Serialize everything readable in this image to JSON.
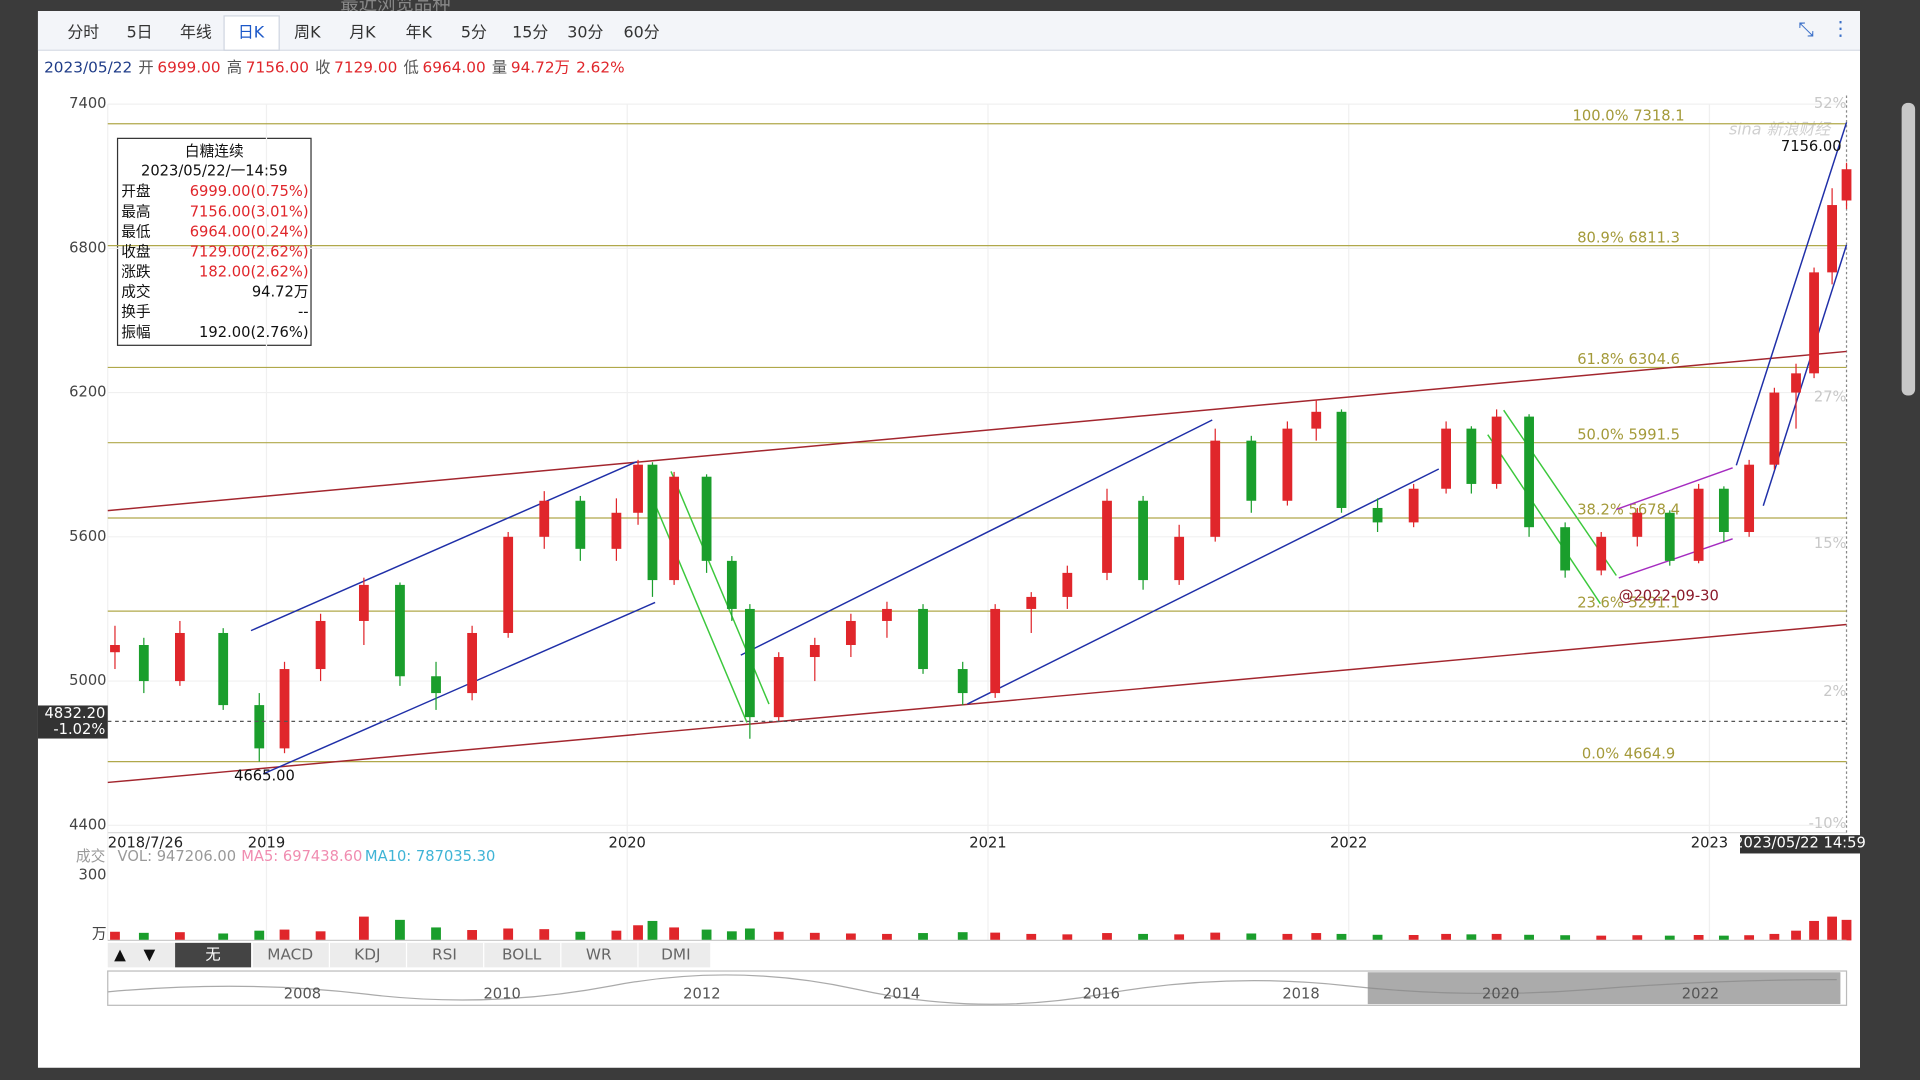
{
  "header": {
    "recent": "最近浏览品种"
  },
  "tabs": [
    "分时",
    "5日",
    "年线",
    "日K",
    "周K",
    "月K",
    "年K",
    "5分",
    "15分",
    "30分",
    "60分"
  ],
  "selected_tab": 3,
  "quote": {
    "date": "2023/05/22",
    "items": [
      [
        "开",
        "6999.00"
      ],
      [
        "高",
        "7156.00"
      ],
      [
        "收",
        "7129.00"
      ],
      [
        "低",
        "6964.00"
      ],
      [
        "量",
        "94.72万"
      ]
    ],
    "change": "2.62%"
  },
  "info_box": {
    "name": "白糖连续",
    "time": "2023/05/22/一14:59",
    "rows": [
      [
        "开盘",
        "6999.00(0.75%)"
      ],
      [
        "最高",
        "7156.00(3.01%)"
      ],
      [
        "最低",
        "6964.00(0.24%)"
      ],
      [
        "收盘",
        "7129.00(2.62%)"
      ],
      [
        "涨跌",
        "182.00(2.62%)"
      ],
      [
        "成交",
        "94.72万"
      ],
      [
        "换手",
        "--"
      ],
      [
        "振幅",
        "192.00(2.76%)"
      ]
    ]
  },
  "chart_data": {
    "type": "candlestick",
    "xlim": [
      2018.56,
      2023.38
    ],
    "xticks": [
      {
        "value": 2018.56,
        "label": "2018/7/26"
      },
      2019,
      2020,
      2021,
      2022,
      2023
    ],
    "ylim": [
      4400,
      7400
    ],
    "yticks": [
      4400,
      5000,
      5600,
      6200,
      6800,
      7400
    ],
    "right_ticks": [
      {
        "value": 7400,
        "label": "52%"
      },
      {
        "value": 6180,
        "label": "27%"
      },
      {
        "value": 5570,
        "label": "15%"
      },
      {
        "value": 4955,
        "label": "2%"
      },
      {
        "value": 4405,
        "label": "-10%"
      }
    ],
    "fib_levels": [
      {
        "value": 7318.1,
        "label": "100.0% 7318.1"
      },
      {
        "value": 6811.3,
        "label": "80.9% 6811.3"
      },
      {
        "value": 6304.6,
        "label": "61.8% 6304.6"
      },
      {
        "value": 5991.5,
        "label": "50.0% 5991.5"
      },
      {
        "value": 5678.4,
        "label": "38.2% 5678.4"
      },
      {
        "value": 5291.1,
        "label": "23.6% 5291.1"
      },
      {
        "value": 4664.9,
        "label": "0.0% 4664.9"
      }
    ],
    "crosshair": {
      "value": 4832.2,
      "label": "4832.20",
      "pct": "-1.02%",
      "time": "2023/05/22 14:59"
    },
    "annotations": {
      "low": "4665.00",
      "high": "7156.00",
      "date": "@2022-09-30"
    },
    "up_color": "#e0262b",
    "down_color": "#1a9e2c",
    "candles": {
      "x": [
        2018.58,
        2018.66,
        2018.76,
        2018.88,
        2018.98,
        2019.05,
        2019.15,
        2019.27,
        2019.37,
        2019.47,
        2019.57,
        2019.67,
        2019.77,
        2019.87,
        2019.97,
        2020.03,
        2020.07,
        2020.13,
        2020.22,
        2020.29,
        2020.34,
        2020.42,
        2020.52,
        2020.62,
        2020.72,
        2020.82,
        2020.93,
        2021.02,
        2021.12,
        2021.22,
        2021.33,
        2021.43,
        2021.53,
        2021.63,
        2021.73,
        2021.83,
        2021.91,
        2021.98,
        2022.08,
        2022.18,
        2022.27,
        2022.34,
        2022.41,
        2022.5,
        2022.6,
        2022.7,
        2022.8,
        2022.89,
        2022.97,
        2023.04,
        2023.11,
        2023.18,
        2023.24,
        2023.29,
        2023.34,
        2023.38
      ],
      "open": [
        5120,
        5150,
        5000,
        5200,
        4900,
        4720,
        5050,
        5250,
        5400,
        5020,
        4950,
        5200,
        5600,
        5750,
        5550,
        5700,
        5900,
        5420,
        5850,
        5500,
        5300,
        4850,
        5100,
        5150,
        5250,
        5300,
        5050,
        4950,
        5300,
        5350,
        5450,
        5750,
        5420,
        5600,
        6000,
        5750,
        6050,
        6120,
        5720,
        5660,
        5800,
        6050,
        5820,
        6100,
        5640,
        5460,
        5600,
        5700,
        5500,
        5800,
        5620,
        5900,
        6200,
        6280,
        6700,
        6999
      ],
      "high": [
        5230,
        5180,
        5250,
        5220,
        4950,
        5080,
        5280,
        5430,
        5410,
        5080,
        5230,
        5620,
        5790,
        5770,
        5760,
        5920,
        5910,
        5870,
        5860,
        5520,
        5320,
        5120,
        5180,
        5280,
        5330,
        5320,
        5080,
        5320,
        5370,
        5480,
        5800,
        5770,
        5650,
        6050,
        6020,
        6080,
        6170,
        6130,
        5760,
        5820,
        6080,
        6060,
        6130,
        6110,
        5660,
        5620,
        5720,
        5710,
        5820,
        5810,
        5920,
        6220,
        6320,
        6720,
        7050,
        7156
      ],
      "low": [
        5050,
        4950,
        4980,
        4880,
        4665,
        4700,
        5000,
        5150,
        4980,
        4880,
        4920,
        5180,
        5550,
        5500,
        5500,
        5650,
        5350,
        5400,
        5450,
        5250,
        4760,
        4830,
        5000,
        5100,
        5180,
        5030,
        4900,
        4930,
        5200,
        5300,
        5420,
        5380,
        5400,
        5580,
        5700,
        5730,
        6000,
        5700,
        5620,
        5640,
        5780,
        5780,
        5800,
        5600,
        5430,
        5440,
        5560,
        5480,
        5490,
        5580,
        5600,
        5880,
        6050,
        6260,
        6650,
        6964
      ],
      "close": [
        5150,
        5000,
        5200,
        4900,
        4720,
        5050,
        5250,
        5400,
        5020,
        4950,
        5200,
        5600,
        5750,
        5550,
        5700,
        5900,
        5420,
        5850,
        5500,
        5300,
        4850,
        5100,
        5150,
        5250,
        5300,
        5050,
        4950,
        5300,
        5350,
        5450,
        5750,
        5420,
        5600,
        6000,
        5750,
        6050,
        6120,
        5720,
        5660,
        5800,
        6050,
        5820,
        6100,
        5640,
        5460,
        5600,
        5700,
        5500,
        5800,
        5620,
        5900,
        6200,
        6280,
        6700,
        6980,
        7129
      ],
      "volume": [
        40,
        35,
        38,
        32,
        45,
        50,
        42,
        110,
        95,
        60,
        48,
        55,
        52,
        40,
        45,
        70,
        90,
        60,
        50,
        42,
        55,
        40,
        35,
        32,
        30,
        34,
        38,
        36,
        30,
        28,
        34,
        30,
        28,
        36,
        32,
        30,
        34,
        30,
        26,
        25,
        30,
        28,
        30,
        26,
        24,
        22,
        24,
        22,
        25,
        22,
        24,
        30,
        45,
        90,
        110,
        95
      ]
    },
    "volume_axis": {
      "name": "成交",
      "vol": "VOL: 947206.00",
      "ma5": "MA5: 697438.60",
      "ma10": "MA10: 787035.30",
      "ylim": [
        0,
        300
      ],
      "yticks": [
        300
      ],
      "unit": "万"
    }
  },
  "indicators": [
    "▲",
    "▼",
    "无",
    "MACD",
    "KDJ",
    "RSI",
    "BOLL",
    "WR",
    "DMI"
  ],
  "navigator": [
    "2008",
    "2010",
    "2012",
    "2014",
    "2016",
    "2018",
    "2020",
    "2022"
  ]
}
